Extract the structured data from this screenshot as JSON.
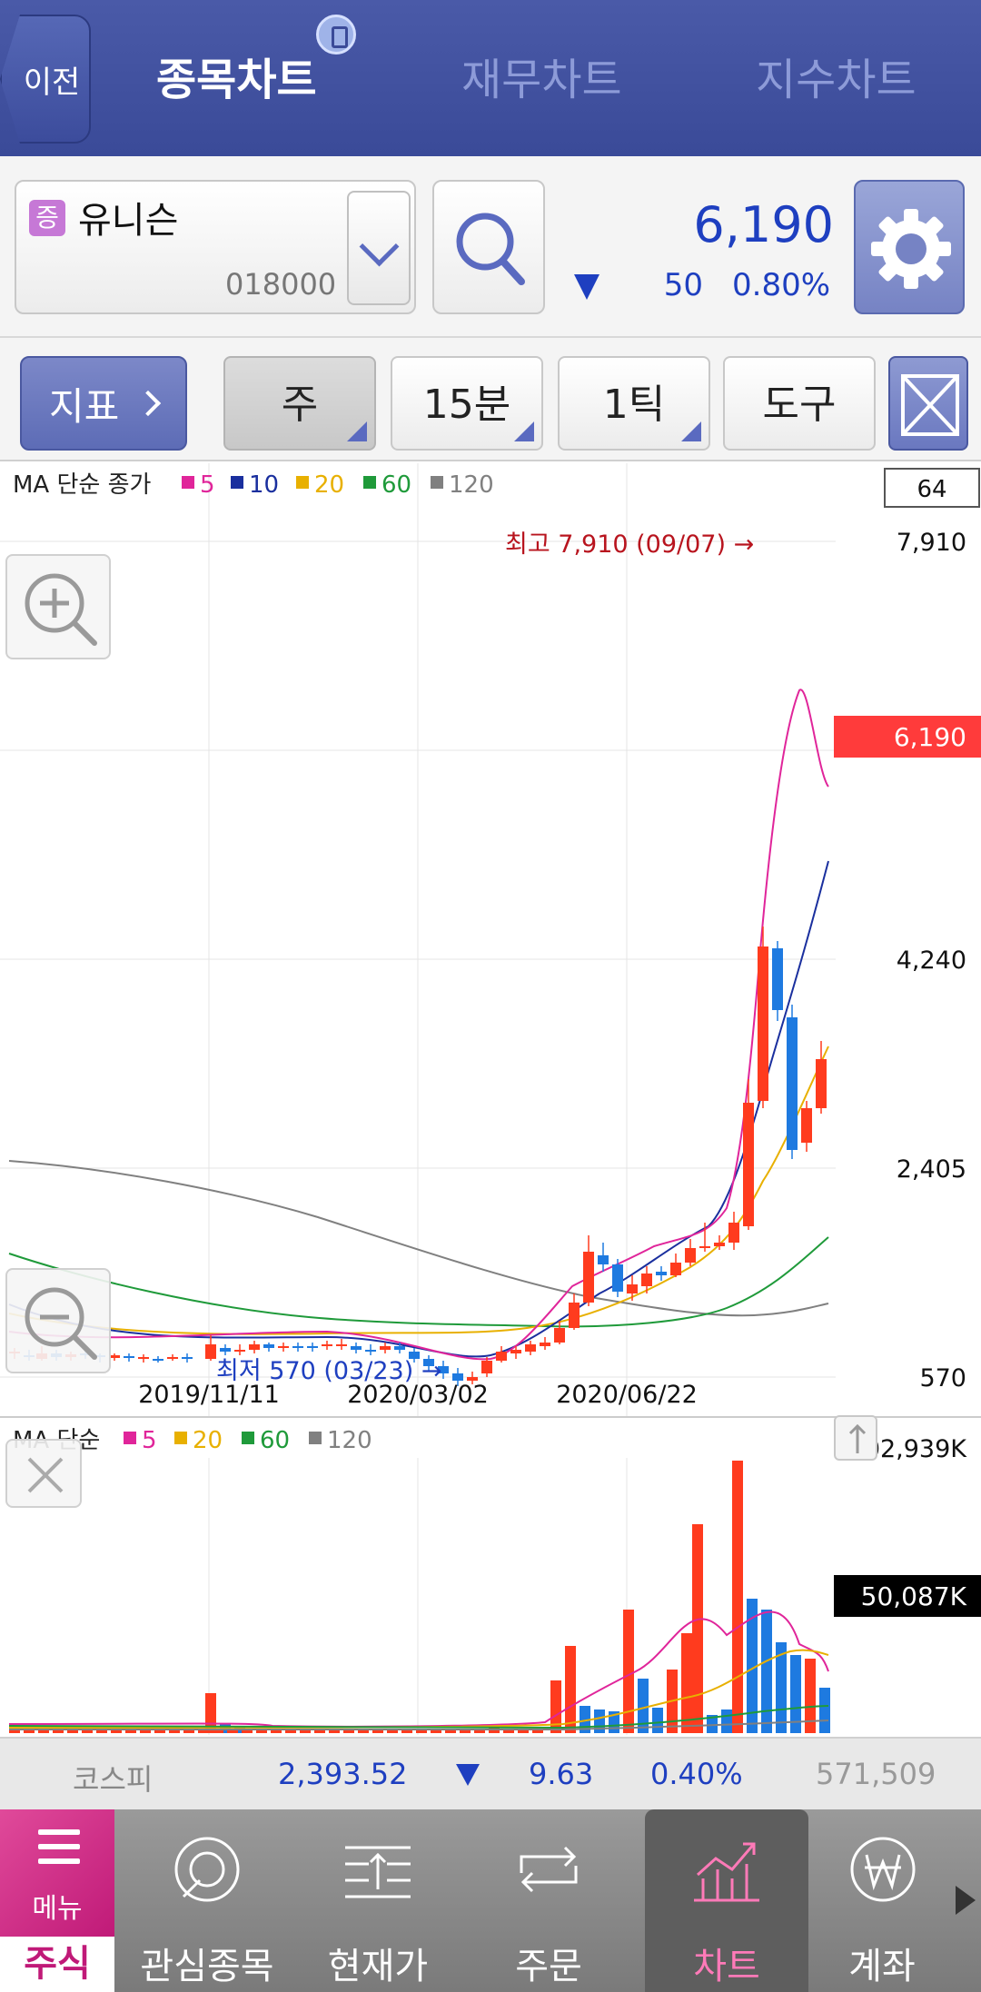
{
  "header": {
    "back_label": "이전",
    "tabs": [
      {
        "label": "종목차트"
      },
      {
        "label": "재무차트"
      },
      {
        "label": "지수차트"
      }
    ]
  },
  "stock": {
    "badge": "증",
    "name": "유니슨",
    "code": "018000",
    "price": "6,190",
    "change": "50",
    "change_pct": "0.80%",
    "color_down": "#1e3fc0"
  },
  "toolbar": {
    "indicator_label": "지표",
    "period": "주",
    "interval": "15분",
    "tick": "1틱",
    "tools": "도구"
  },
  "price_chart": {
    "legend_title": "MA 단순 종가",
    "ma": [
      {
        "label": "5",
        "color": "#e0259a"
      },
      {
        "label": "10",
        "color": "#1a2f9e"
      },
      {
        "label": "20",
        "color": "#e8b000"
      },
      {
        "label": "60",
        "color": "#1f9a3a"
      },
      {
        "label": "120",
        "color": "#808080"
      }
    ],
    "count_box": "64",
    "y_ticks": [
      "7,910",
      "4,240",
      "2,405",
      "570"
    ],
    "current_price_tag": "6,190",
    "high_annotation": "최고 7,910 (09/07) →",
    "low_annotation": "최저 570 (03/23) →",
    "x_ticks": [
      "2019/11/11",
      "2020/03/02",
      "2020/06/22"
    ]
  },
  "volume_chart": {
    "legend_title": "MA 단순",
    "ma": [
      {
        "label": "5",
        "color": "#e0259a"
      },
      {
        "label": "20",
        "color": "#e8b000"
      },
      {
        "label": "60",
        "color": "#1f9a3a"
      },
      {
        "label": "120",
        "color": "#808080"
      }
    ],
    "max_label": "302,939K",
    "current_label": "50,087K"
  },
  "index_bar": {
    "name": "코스피",
    "value": "2,393.52",
    "change": "9.63",
    "pct": "0.40%",
    "volume": "571,509"
  },
  "bottom_nav": {
    "menu_label": "메뉴",
    "section_label": "주식",
    "items": [
      {
        "label": "관심종목",
        "icon": "star-circle-icon"
      },
      {
        "label": "현재가",
        "icon": "price-list-icon"
      },
      {
        "label": "주문",
        "icon": "exchange-arrows-icon"
      },
      {
        "label": "차트",
        "icon": "chart-growth-icon"
      },
      {
        "label": "계좌",
        "icon": "won-coin-icon"
      }
    ]
  }
}
